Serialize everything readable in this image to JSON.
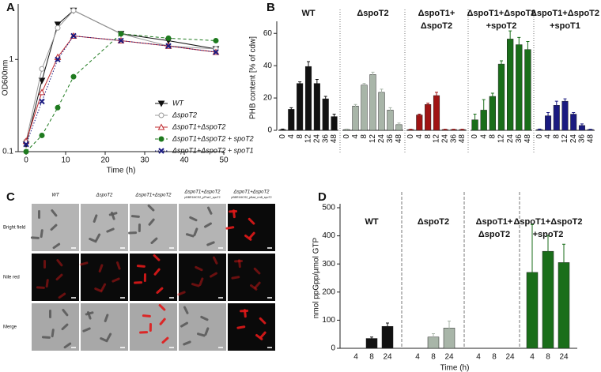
{
  "chart_data": [
    {
      "type": "line",
      "panel_label": "A",
      "xlabel": "Time (h)",
      "ylabel": "OD600nm",
      "x": [
        0,
        4,
        8,
        12,
        24,
        36,
        48
      ],
      "xlim": [
        -2,
        50
      ],
      "xticks": [
        0,
        10,
        20,
        30,
        40,
        50
      ],
      "ylim": [
        0.1,
        4
      ],
      "yticks": [
        0.1,
        1
      ],
      "log_y": true,
      "legend": "lower right",
      "series": [
        {
          "name": "WT",
          "color": "#111111",
          "marker": "triangle-down",
          "dash": "solid",
          "values": [
            0.12,
            0.59,
            2.4,
            3.4,
            1.9,
            1.6,
            1.3
          ]
        },
        {
          "name": "ΔspoT2",
          "color": "#9a9a9a",
          "marker": "circle-open",
          "dash": "solid",
          "values": [
            0.13,
            0.79,
            2.2,
            3.4,
            1.9,
            1.4,
            1.3
          ]
        },
        {
          "name": "ΔspoT1+ΔspoT2",
          "color": "#c0282d",
          "marker": "triangle-up-open",
          "dash": "solid",
          "values": [
            0.13,
            0.44,
            1.06,
            1.8,
            1.6,
            1.4,
            1.2
          ]
        },
        {
          "name": "ΔspoT1+ΔspoT2 + spoT2",
          "color": "#1e7a1e",
          "marker": "circle",
          "dash": "dashed",
          "values": [
            0.1,
            0.15,
            0.3,
            0.65,
            1.9,
            1.7,
            1.6
          ]
        },
        {
          "name": "ΔspoT1+ΔspoT2 + spoT1",
          "color": "#1a1a80",
          "marker": "x",
          "dash": "dotted",
          "values": [
            0.12,
            0.35,
            1.0,
            1.8,
            1.6,
            1.4,
            1.2
          ]
        }
      ]
    },
    {
      "type": "bar",
      "panel_label": "B",
      "ylabel": "PHB content [% of cdw]",
      "ylim": [
        0,
        65
      ],
      "yticks": [
        0,
        20,
        40,
        60
      ],
      "groups": [
        {
          "title_lines": [
            "WT"
          ],
          "color": "#111111",
          "categories": [
            "0",
            "4",
            "8",
            "12",
            "24",
            "36",
            "48"
          ],
          "values": [
            0.5,
            13,
            29,
            39.5,
            29,
            19.5,
            8.5
          ],
          "errors": [
            0.3,
            1,
            1,
            3,
            2.5,
            1.5,
            1.5
          ]
        },
        {
          "title_lines": [
            "ΔspoT2"
          ],
          "color": "#a8b5a8",
          "categories": [
            "0",
            "4",
            "8",
            "12",
            "24",
            "36",
            "48"
          ],
          "values": [
            0.5,
            15,
            28,
            34.5,
            23.5,
            12.5,
            3.5
          ],
          "errors": [
            0.3,
            1,
            1,
            1.5,
            2,
            1.5,
            1
          ]
        },
        {
          "title_lines": [
            "ΔspoT1+",
            "ΔspoT2"
          ],
          "color": "#a01414",
          "categories": [
            "0",
            "4",
            "8",
            "12",
            "24",
            "36",
            "48"
          ],
          "values": [
            0.5,
            9.5,
            16,
            21.5,
            0.5,
            0.5,
            0.5
          ],
          "errors": [
            0.2,
            0.5,
            0.8,
            2,
            0.2,
            0.2,
            0.2
          ]
        },
        {
          "title_lines": [
            "ΔspoT1+ΔspoT2",
            "+spoT2"
          ],
          "color": "#1a6e1a",
          "categories": [
            "0",
            "4",
            "8",
            "12",
            "24",
            "36",
            "48"
          ],
          "values": [
            6.5,
            12.5,
            21,
            41,
            56.5,
            53,
            50
          ],
          "errors": [
            3.5,
            6.5,
            2,
            2,
            5,
            4.5,
            5
          ]
        },
        {
          "title_lines": [
            "ΔspoT1+ΔspoT2",
            "+spoT1"
          ],
          "color": "#1a1a80",
          "categories": [
            "0",
            "4",
            "8",
            "12",
            "24",
            "36",
            "48"
          ],
          "values": [
            0.5,
            9,
            15.5,
            18,
            10,
            3,
            0.5
          ],
          "errors": [
            0.3,
            2,
            2.5,
            1.5,
            1,
            1,
            0.2
          ]
        }
      ]
    },
    {
      "type": "bar",
      "panel_label": "D",
      "ylabel": "nmol ppGpp/µmol GTP",
      "xlabel": "Time (h)",
      "ylim": [
        0,
        500
      ],
      "yticks": [
        0,
        100,
        200,
        300,
        400,
        500
      ],
      "groups": [
        {
          "title_lines": [
            "WT"
          ],
          "color": "#111111",
          "categories": [
            "4",
            "8",
            "24"
          ],
          "values": [
            0,
            35,
            78
          ],
          "errors": [
            0,
            5,
            12
          ]
        },
        {
          "title_lines": [
            "ΔspoT2"
          ],
          "color": "#a8b5a8",
          "categories": [
            "4",
            "8",
            "24"
          ],
          "values": [
            0,
            40,
            72
          ],
          "errors": [
            0,
            12,
            25
          ]
        },
        {
          "title_lines": [
            "ΔspoT1+",
            "ΔspoT2"
          ],
          "color": "#a01414",
          "categories": [
            "4",
            "8",
            "24"
          ],
          "values": [
            0,
            0,
            0
          ],
          "errors": [
            0,
            0,
            0
          ]
        },
        {
          "title_lines": [
            "ΔspoT1+ΔspoT2",
            "+spoT2"
          ],
          "color": "#1a6e1a",
          "categories": [
            "4",
            "8",
            "24"
          ],
          "values": [
            270,
            345,
            305
          ],
          "errors": [
            170,
            55,
            65
          ]
        }
      ]
    }
  ],
  "micrographs": {
    "panel_label": "C",
    "columns": [
      {
        "title": "WT"
      },
      {
        "title": "ΔspoT2"
      },
      {
        "title": "ΔspoT1+ΔspoT2"
      },
      {
        "title": "ΔspoT1+ΔspoT2",
        "subtitle": "pBBR1MCS2_pPhaC_spoT2"
      },
      {
        "title": "ΔspoT1+ΔspoT2",
        "subtitle": "pBBR1MCS2_pBad_rrnB_spoT2"
      }
    ],
    "rows": [
      "Bright field",
      "Nile red",
      "Merge"
    ]
  }
}
